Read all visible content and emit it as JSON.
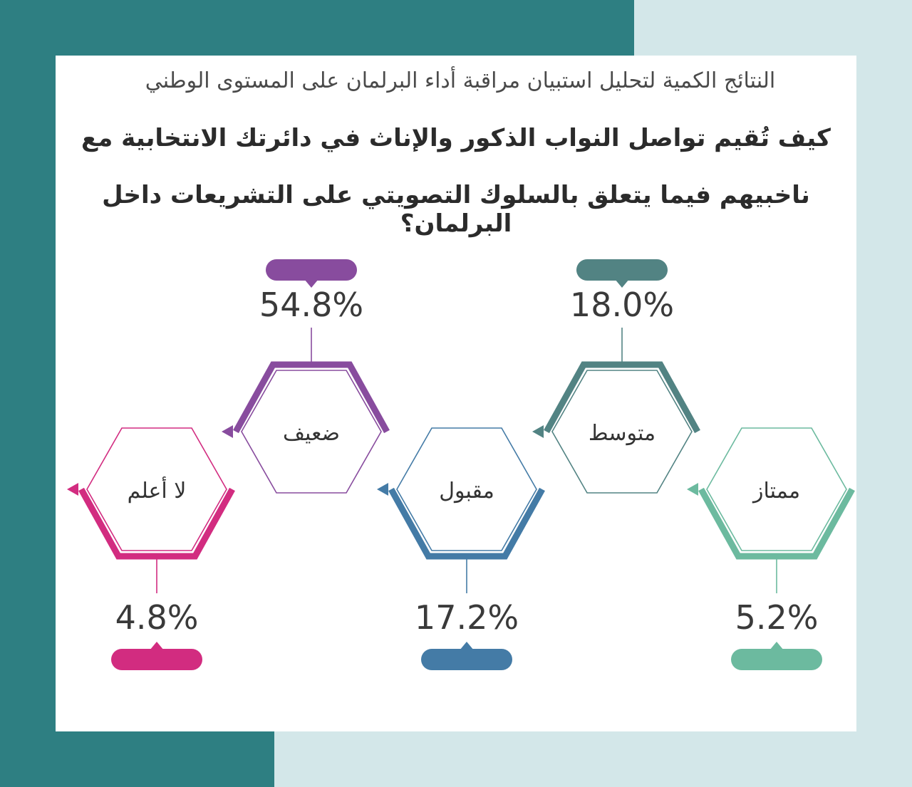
{
  "subtitle": "النتائج الكمية لتحليل استبيان مراقبة أداء البرلمان على المستوى الوطني",
  "question_line1": "كيف تُقيم تواصل النواب الذكور والإناث في دائرتك الانتخابية مع",
  "question_line2": "ناخبيهم فيما يتعلق بالسلوك التصويتي على التشريعات داخل البرلمان؟",
  "chart_data": {
    "type": "pie",
    "unit": "%",
    "categories": [
      "ممتاز",
      "متوسط",
      "مقبول",
      "ضعيف",
      "لا أعلم"
    ],
    "values": [
      5.2,
      18.0,
      17.2,
      54.8,
      4.8
    ],
    "labels": [
      "5.2%",
      "18.0%",
      "17.2%",
      "54.8%",
      "4.8%"
    ],
    "colors": [
      "#6cba9f",
      "#528383",
      "#447ba6",
      "#884c9e",
      "#d22c80"
    ]
  }
}
